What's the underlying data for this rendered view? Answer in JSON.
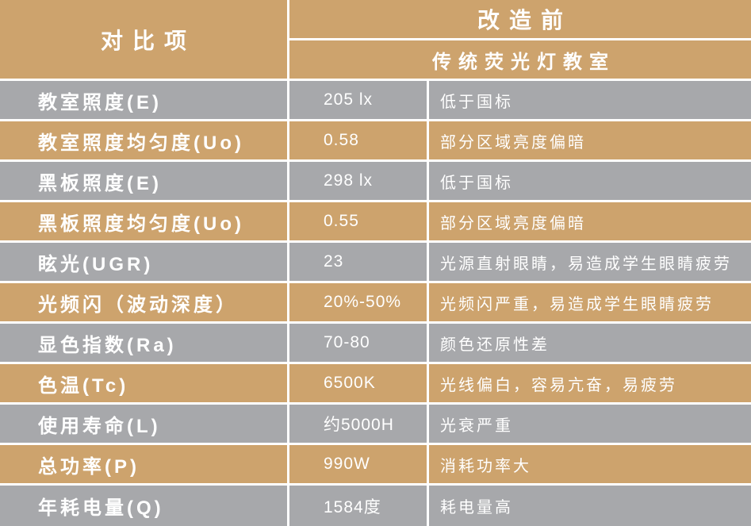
{
  "colors": {
    "row_tan": "#CDA36D",
    "row_gray": "#A7A8AB",
    "gridline": "#FFFFFF",
    "text": "#FFFFFF"
  },
  "chart_data": {
    "type": "table",
    "header": {
      "row_label_column": "对比项",
      "value_group": "改造前",
      "value_group_sub": "传统荧光灯教室"
    },
    "rows": [
      {
        "label": "教室照度(E)",
        "value": "205 lx",
        "note": "低于国标"
      },
      {
        "label": "教室照度均匀度(Uo)",
        "value": "0.58",
        "note": "部分区域亮度偏暗"
      },
      {
        "label": "黑板照度(E)",
        "value": "298 lx",
        "note": "低于国标"
      },
      {
        "label": "黑板照度均匀度(Uo)",
        "value": "0.55",
        "note": "部分区域亮度偏暗"
      },
      {
        "label": "眩光(UGR)",
        "value": "23",
        "note": "光源直射眼睛，易造成学生眼睛疲劳"
      },
      {
        "label": "光频闪（波动深度）",
        "value": "20%-50%",
        "note": "光频闪严重，易造成学生眼睛疲劳"
      },
      {
        "label": "显色指数(Ra)",
        "value": "70-80",
        "note": "颜色还原性差"
      },
      {
        "label": "色温(Tc)",
        "value": "6500K",
        "note": "光线偏白，容易亢奋，易疲劳"
      },
      {
        "label": "使用寿命(L)",
        "value": "约5000H",
        "note": "光衰严重"
      },
      {
        "label": "总功率(P)",
        "value": "990W",
        "note": "消耗功率大"
      },
      {
        "label": "年耗电量(Q)",
        "value": "1584度",
        "note": "耗电量高"
      }
    ]
  }
}
